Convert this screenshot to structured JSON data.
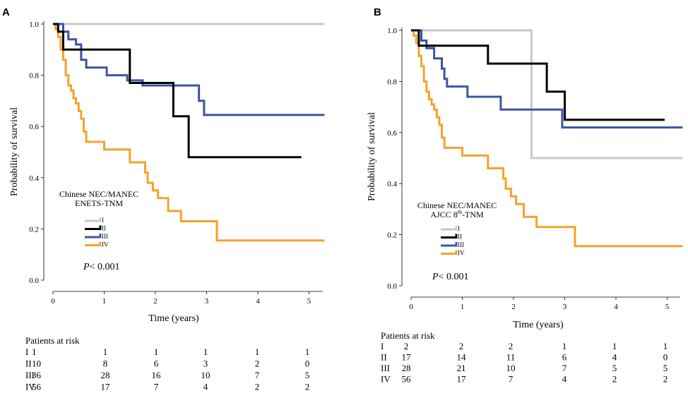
{
  "chart_data": [
    {
      "type": "line",
      "subtype": "kaplan-meier",
      "panel": "A",
      "ylabel": "Probability of survival",
      "xlabel": "Time (years)",
      "xlim": [
        0,
        5.3
      ],
      "ylim": [
        0,
        1.0
      ],
      "xticks": [
        "0",
        "1",
        "2",
        "3",
        "4",
        "5"
      ],
      "yticks": [
        "0.0",
        "0.2",
        "0.4",
        "0.6",
        "0.8",
        "1.0"
      ],
      "legend": {
        "title_line1": "Chinese NEC/MANEC",
        "title_line2": "ENETS-TNM",
        "placement": "left-middle"
      },
      "p_value": {
        "italic": "P",
        "text": "< 0.001"
      },
      "series": [
        {
          "name": "I",
          "color": "#c8c8c8",
          "steps": [
            [
              0,
              1.0
            ],
            [
              5.3,
              1.0
            ]
          ]
        },
        {
          "name": "II",
          "color": "#000000",
          "steps": [
            [
              0,
              1.0
            ],
            [
              0.1,
              0.97
            ],
            [
              0.2,
              0.9
            ],
            [
              1.5,
              0.77
            ],
            [
              2.35,
              0.64
            ],
            [
              2.65,
              0.48
            ],
            [
              4.85,
              0.48
            ]
          ]
        },
        {
          "name": "III",
          "color": "#3a55a4",
          "steps": [
            [
              0,
              1.0
            ],
            [
              0.2,
              0.97
            ],
            [
              0.3,
              0.94
            ],
            [
              0.45,
              0.92
            ],
            [
              0.55,
              0.86
            ],
            [
              0.65,
              0.83
            ],
            [
              1.05,
              0.8
            ],
            [
              1.45,
              0.78
            ],
            [
              1.75,
              0.76
            ],
            [
              2.85,
              0.7
            ],
            [
              2.95,
              0.645
            ],
            [
              5.3,
              0.645
            ]
          ]
        },
        {
          "name": "IV",
          "color": "#f4a22c",
          "steps": [
            [
              0,
              1.0
            ],
            [
              0.05,
              0.98
            ],
            [
              0.1,
              0.95
            ],
            [
              0.15,
              0.9
            ],
            [
              0.2,
              0.86
            ],
            [
              0.25,
              0.8
            ],
            [
              0.3,
              0.76
            ],
            [
              0.35,
              0.74
            ],
            [
              0.4,
              0.71
            ],
            [
              0.45,
              0.69
            ],
            [
              0.5,
              0.66
            ],
            [
              0.55,
              0.63
            ],
            [
              0.6,
              0.58
            ],
            [
              0.65,
              0.54
            ],
            [
              1.0,
              0.51
            ],
            [
              1.5,
              0.46
            ],
            [
              1.8,
              0.42
            ],
            [
              1.85,
              0.38
            ],
            [
              1.95,
              0.35
            ],
            [
              2.05,
              0.32
            ],
            [
              2.25,
              0.27
            ],
            [
              2.5,
              0.23
            ],
            [
              3.2,
              0.155
            ],
            [
              5.3,
              0.155
            ]
          ]
        }
      ],
      "risk_table": {
        "title": "Patients at risk",
        "rows": [
          {
            "label": "I",
            "values": [
              "1",
              "1",
              "1",
              "1",
              "1",
              "1"
            ]
          },
          {
            "label": "II",
            "values": [
              "10",
              "8",
              "6",
              "3",
              "2",
              "0"
            ]
          },
          {
            "label": "III",
            "values": [
              "36",
              "28",
              "16",
              "10",
              "7",
              "5"
            ]
          },
          {
            "label": "IV",
            "values": [
              "56",
              "17",
              "7",
              "4",
              "2",
              "2"
            ]
          }
        ]
      }
    },
    {
      "type": "line",
      "subtype": "kaplan-meier",
      "panel": "B",
      "ylabel": "Probability of survival",
      "xlabel": "Time (years)",
      "xlim": [
        0,
        5.3
      ],
      "ylim": [
        0,
        1.0
      ],
      "xticks": [
        "0",
        "1",
        "2",
        "3",
        "4",
        "5"
      ],
      "yticks": [
        "0.0",
        "0.2",
        "0.4",
        "0.6",
        "0.8",
        "1.0"
      ],
      "legend": {
        "title_line1": "Chinese NEC/MANEC",
        "title_line2_pre": "AJCC 8",
        "title_line2_sup": "th",
        "title_line2_post": "-TNM",
        "placement": "left-middle"
      },
      "p_value": {
        "italic": "P",
        "text": "< 0.001"
      },
      "series": [
        {
          "name": "I",
          "color": "#c8c8c8",
          "steps": [
            [
              0,
              1.0
            ],
            [
              2.35,
              0.5
            ],
            [
              5.3,
              0.5
            ]
          ]
        },
        {
          "name": "II",
          "color": "#000000",
          "steps": [
            [
              0,
              1.0
            ],
            [
              0.15,
              0.94
            ],
            [
              1.5,
              0.87
            ],
            [
              2.65,
              0.76
            ],
            [
              3.0,
              0.65
            ],
            [
              4.95,
              0.65
            ]
          ]
        },
        {
          "name": "III",
          "color": "#3a55a4",
          "steps": [
            [
              0,
              1.0
            ],
            [
              0.2,
              0.96
            ],
            [
              0.3,
              0.93
            ],
            [
              0.45,
              0.89
            ],
            [
              0.6,
              0.85
            ],
            [
              0.65,
              0.81
            ],
            [
              0.7,
              0.78
            ],
            [
              1.1,
              0.74
            ],
            [
              1.75,
              0.69
            ],
            [
              2.95,
              0.62
            ],
            [
              5.3,
              0.62
            ]
          ]
        },
        {
          "name": "IV",
          "color": "#f4a22c",
          "steps": [
            [
              0,
              1.0
            ],
            [
              0.05,
              0.98
            ],
            [
              0.1,
              0.95
            ],
            [
              0.15,
              0.9
            ],
            [
              0.2,
              0.86
            ],
            [
              0.25,
              0.8
            ],
            [
              0.3,
              0.76
            ],
            [
              0.35,
              0.73
            ],
            [
              0.4,
              0.71
            ],
            [
              0.45,
              0.69
            ],
            [
              0.5,
              0.66
            ],
            [
              0.55,
              0.63
            ],
            [
              0.6,
              0.58
            ],
            [
              0.65,
              0.54
            ],
            [
              1.0,
              0.51
            ],
            [
              1.5,
              0.46
            ],
            [
              1.8,
              0.42
            ],
            [
              1.85,
              0.38
            ],
            [
              1.95,
              0.35
            ],
            [
              2.05,
              0.32
            ],
            [
              2.2,
              0.27
            ],
            [
              2.45,
              0.23
            ],
            [
              3.2,
              0.155
            ],
            [
              5.3,
              0.155
            ]
          ]
        }
      ],
      "risk_table": {
        "title": "Patients at risk",
        "rows": [
          {
            "label": "I",
            "values": [
              "2",
              "2",
              "2",
              "1",
              "1",
              "1"
            ]
          },
          {
            "label": "II",
            "values": [
              "17",
              "14",
              "11",
              "6",
              "4",
              "0"
            ]
          },
          {
            "label": "III",
            "values": [
              "28",
              "21",
              "10",
              "7",
              "5",
              "5"
            ]
          },
          {
            "label": "IV",
            "values": [
              "56",
              "17",
              "7",
              "4",
              "2",
              "2"
            ]
          }
        ]
      }
    }
  ]
}
